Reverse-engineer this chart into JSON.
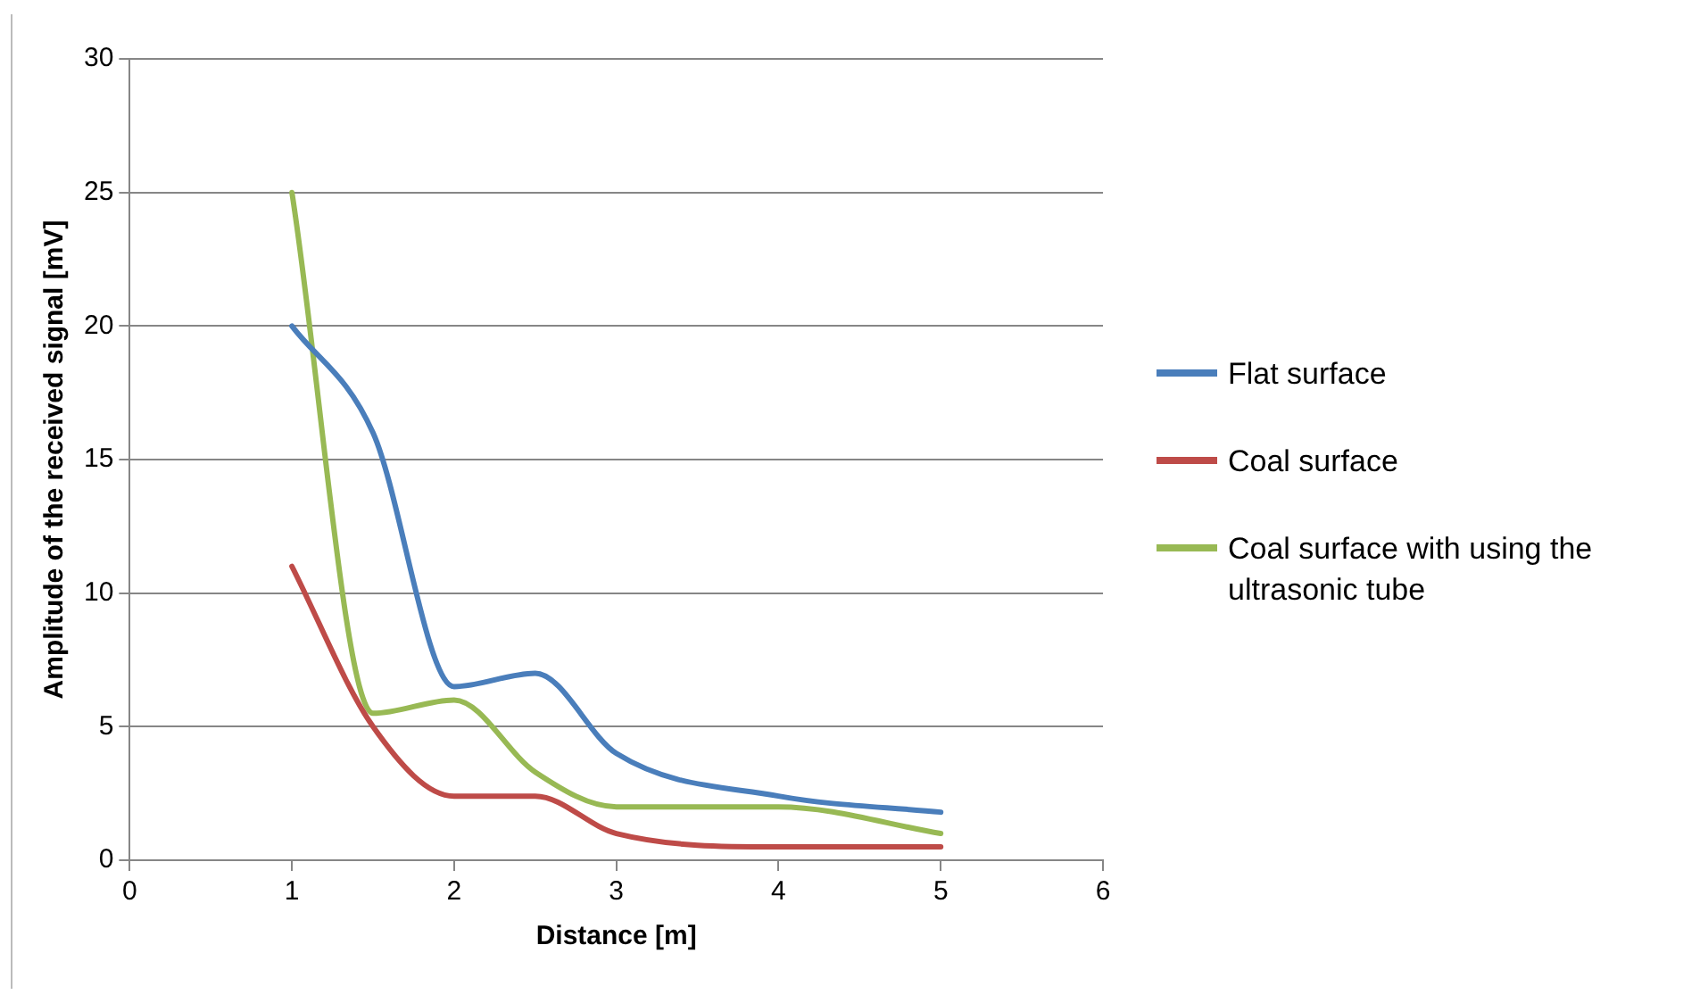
{
  "chart_data": {
    "type": "line",
    "xlabel": "Distance [m]",
    "ylabel": "Amplitude of the received signal [mV]",
    "x": [
      1,
      1.5,
      2,
      2.5,
      3,
      4,
      5
    ],
    "series": [
      {
        "name": "Flat surface",
        "color": "#4a7ebb",
        "values": [
          20,
          16,
          6.5,
          7,
          4,
          2.4,
          1.8
        ]
      },
      {
        "name": "Coal surface",
        "color": "#be4b48",
        "values": [
          11,
          5,
          2.4,
          2.4,
          1,
          0.5,
          0.5
        ]
      },
      {
        "name": "Coal surface with using the ultrasonic tube",
        "color": "#98b954",
        "values": [
          25,
          5.5,
          6,
          3.3,
          2,
          2,
          1
        ]
      }
    ],
    "xlim": [
      0,
      6
    ],
    "xticks": [
      0,
      1,
      2,
      3,
      4,
      5,
      6
    ],
    "ylim": [
      0,
      30
    ],
    "yticks": [
      0,
      5,
      10,
      15,
      20,
      25,
      30
    ],
    "grid": "y",
    "legend": "right",
    "marker": "none",
    "line_style": "solid"
  }
}
